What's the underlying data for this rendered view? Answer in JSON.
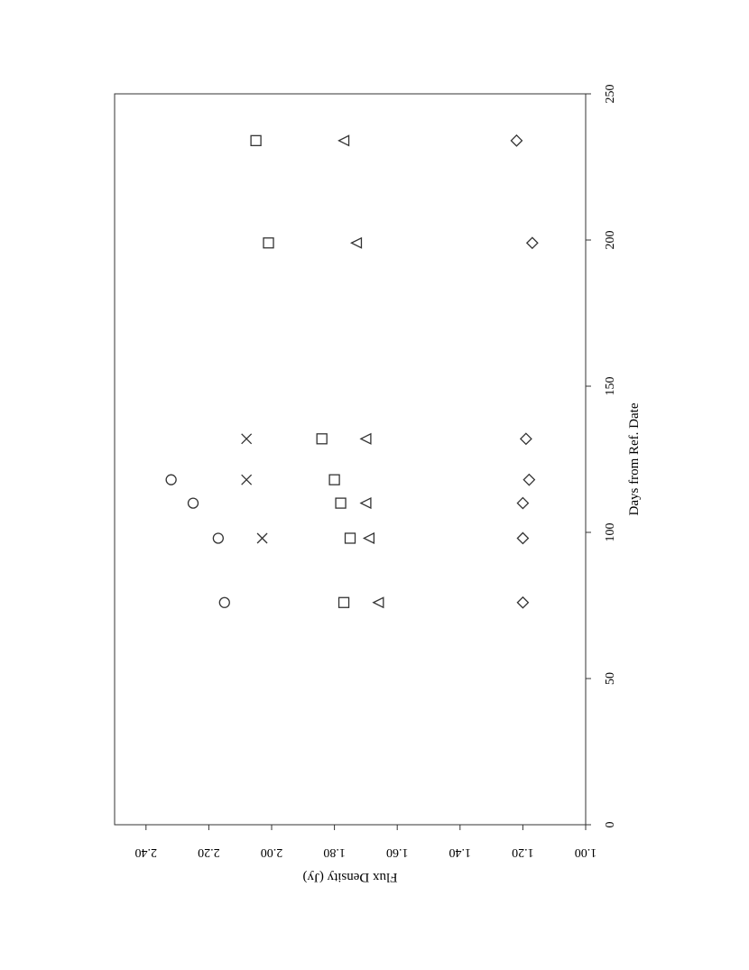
{
  "chart_data": {
    "type": "scatter",
    "xlabel": "Days from Ref. Date",
    "ylabel": "Flux Density (Jy)",
    "xlim": [
      0,
      250
    ],
    "ylim": [
      1.0,
      2.5
    ],
    "x_ticks": [
      "0",
      "50",
      "100",
      "150",
      "200",
      "250"
    ],
    "y_ticks": [
      "1.00",
      "1.20",
      "1.40",
      "1.60",
      "1.80",
      "2.00",
      "2.20",
      "2.40"
    ],
    "x_tick_values": [
      0,
      50,
      100,
      150,
      200,
      250
    ],
    "y_tick_values": [
      1.0,
      1.2,
      1.4,
      1.6,
      1.8,
      2.0,
      2.2,
      2.4
    ],
    "grid": false,
    "orientation": "rotated-90",
    "series": [
      {
        "marker": "circle",
        "points": [
          {
            "x": 76,
            "y": 2.15
          },
          {
            "x": 98,
            "y": 2.17
          },
          {
            "x": 110,
            "y": 2.25
          },
          {
            "x": 118,
            "y": 2.32
          }
        ]
      },
      {
        "marker": "cross",
        "points": [
          {
            "x": 98,
            "y": 2.03
          },
          {
            "x": 118,
            "y": 2.08
          },
          {
            "x": 132,
            "y": 2.08
          }
        ]
      },
      {
        "marker": "square",
        "points": [
          {
            "x": 76,
            "y": 1.77
          },
          {
            "x": 98,
            "y": 1.75
          },
          {
            "x": 110,
            "y": 1.78
          },
          {
            "x": 118,
            "y": 1.8
          },
          {
            "x": 132,
            "y": 1.84
          },
          {
            "x": 199,
            "y": 2.01
          },
          {
            "x": 234,
            "y": 2.05
          }
        ]
      },
      {
        "marker": "triangle",
        "points": [
          {
            "x": 76,
            "y": 1.66
          },
          {
            "x": 98,
            "y": 1.69
          },
          {
            "x": 110,
            "y": 1.7
          },
          {
            "x": 132,
            "y": 1.7
          },
          {
            "x": 199,
            "y": 1.73
          },
          {
            "x": 234,
            "y": 1.77
          }
        ]
      },
      {
        "marker": "diamond",
        "points": [
          {
            "x": 76,
            "y": 1.2
          },
          {
            "x": 98,
            "y": 1.2
          },
          {
            "x": 110,
            "y": 1.2
          },
          {
            "x": 118,
            "y": 1.18
          },
          {
            "x": 132,
            "y": 1.19
          },
          {
            "x": 199,
            "y": 1.17
          },
          {
            "x": 234,
            "y": 1.22
          }
        ]
      }
    ]
  }
}
